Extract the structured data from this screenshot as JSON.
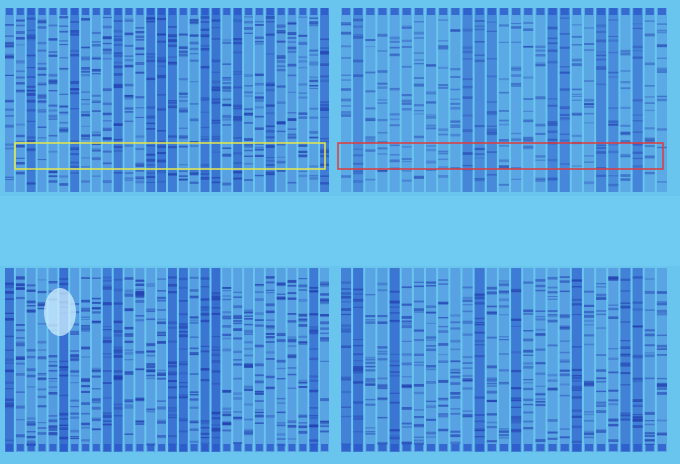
{
  "colors": {
    "background": "#69c4ee",
    "separator": "#6fcbf2",
    "lane_light": "#4f8fdc",
    "lane_dark": "#2a56c8",
    "band": "#223fb0",
    "box_left": "#e6e84a",
    "box_right": "#e03a3a"
  },
  "gels": [
    {
      "id": "top",
      "panels": [
        {
          "lanes": 30,
          "density": 0.85
        },
        {
          "lanes": 27,
          "density": 0.45
        }
      ]
    },
    {
      "id": "bottom",
      "panels": [
        {
          "lanes": 30,
          "density": 0.9
        },
        {
          "lanes": 27,
          "density": 0.75
        }
      ]
    }
  ],
  "highlight_boxes": [
    {
      "id": "left",
      "color_key": "box_left"
    },
    {
      "id": "right",
      "color_key": "box_right"
    }
  ]
}
